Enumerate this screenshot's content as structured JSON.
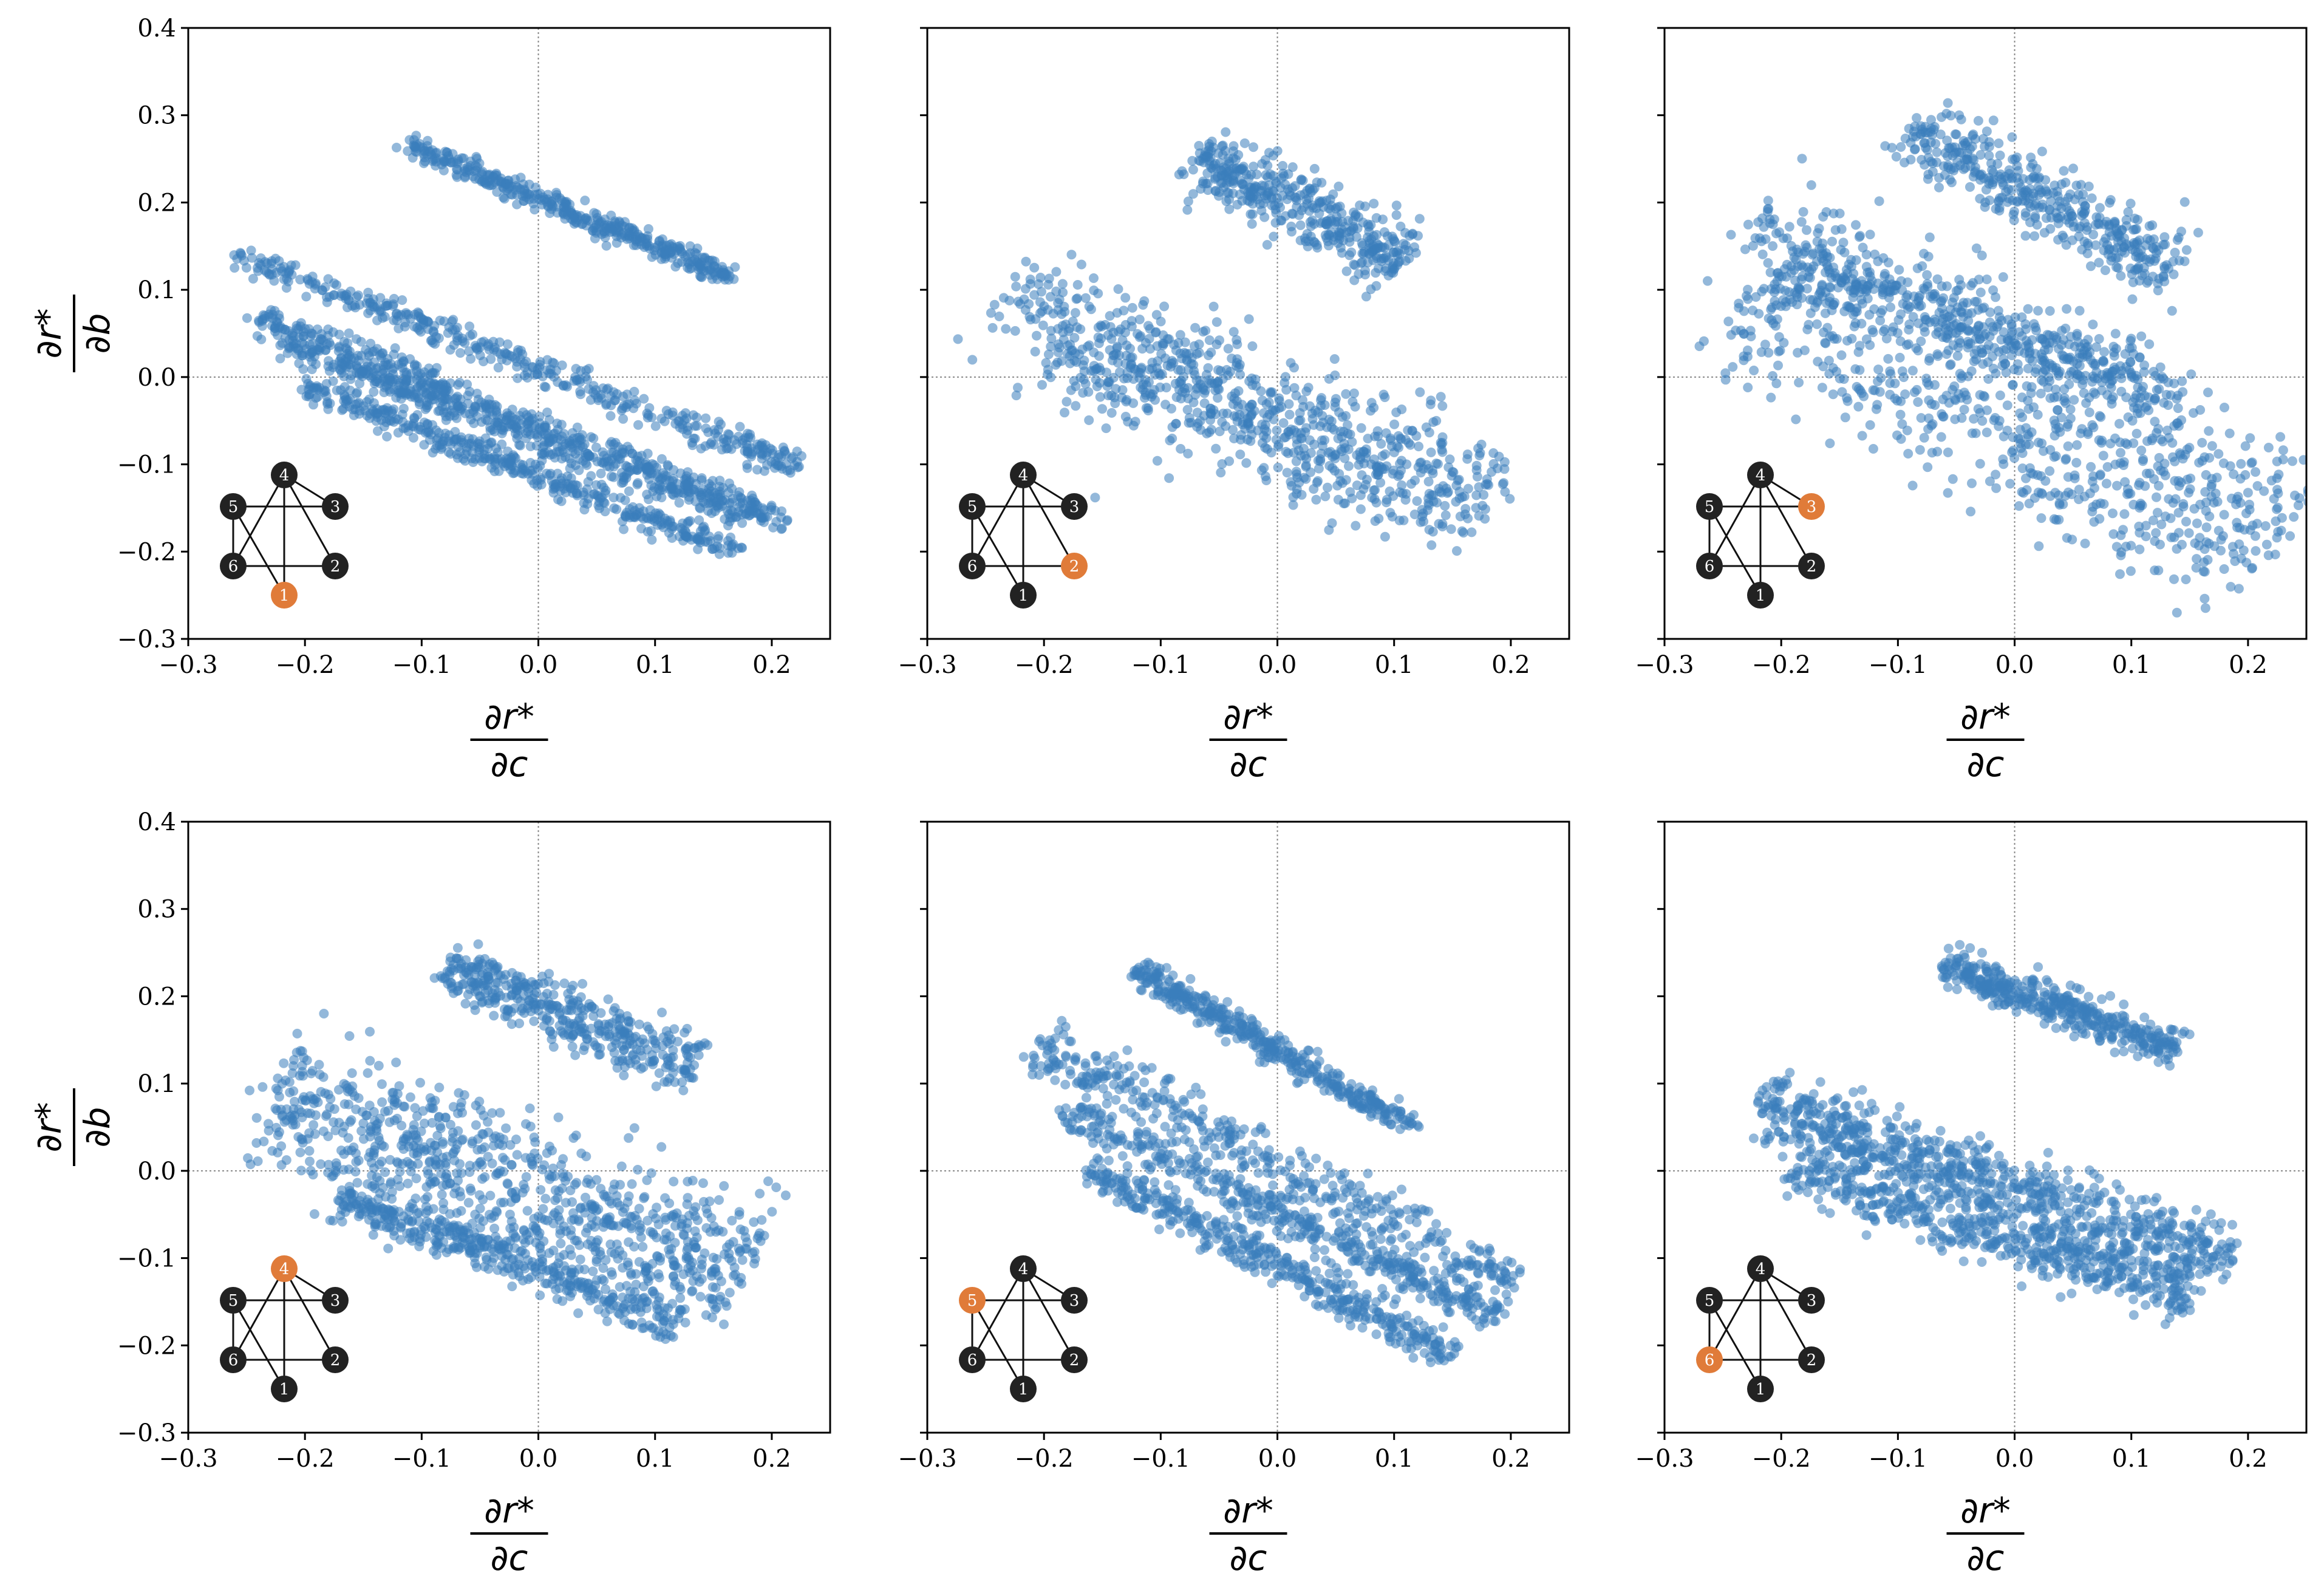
{
  "colors": {
    "points": "#3a7ebb",
    "node_default": "#222222",
    "node_highlight": "#e07b39",
    "node_text": "#ffffff",
    "zero_line": "#888888"
  },
  "shared_axes": {
    "xlabel_num": "∂r*",
    "xlabel_den": "∂c",
    "ylabel_num": "∂r*",
    "ylabel_den": "∂b",
    "xlim": [
      -0.3,
      0.25
    ],
    "ylim": [
      -0.3,
      0.4
    ],
    "xticks": [
      "−0.3",
      "−0.2",
      "−0.1",
      "0.0",
      "0.1",
      "0.2"
    ],
    "yticks": [
      "−0.3",
      "−0.2",
      "−0.1",
      "0.0",
      "0.1",
      "0.2",
      "0.3",
      "0.4"
    ]
  },
  "network": {
    "nodes": [
      "1",
      "2",
      "3",
      "4",
      "5",
      "6"
    ],
    "edges": [
      [
        "1",
        "4"
      ],
      [
        "1",
        "5"
      ],
      [
        "2",
        "4"
      ],
      [
        "2",
        "6"
      ],
      [
        "3",
        "4"
      ],
      [
        "5",
        "6"
      ],
      [
        "4",
        "6"
      ],
      [
        "3",
        "5"
      ]
    ]
  },
  "chart_data": [
    {
      "type": "scatter",
      "highlight_node": "1",
      "xlabel": "∂r*/∂c",
      "ylabel": "∂r*/∂b",
      "xlim": [
        -0.3,
        0.25
      ],
      "ylim": [
        -0.3,
        0.4
      ],
      "clusters": [
        {
          "from": [
            -0.11,
            0.265
          ],
          "to": [
            0.165,
            0.115
          ],
          "spread": 0.006
        },
        {
          "from": [
            -0.26,
            0.14
          ],
          "to": [
            0.225,
            -0.105
          ],
          "spread": 0.008
        },
        {
          "from": [
            -0.24,
            0.07
          ],
          "to": [
            0.21,
            -0.165
          ],
          "spread": 0.008
        },
        {
          "from": [
            -0.22,
            0.04
          ],
          "to": [
            0.18,
            -0.16
          ],
          "spread": 0.008
        },
        {
          "from": [
            -0.2,
            -0.01
          ],
          "to": [
            0.17,
            -0.2
          ],
          "spread": 0.007
        }
      ]
    },
    {
      "type": "scatter",
      "highlight_node": "2",
      "xlabel": "∂r*/∂c",
      "ylabel": "∂r*/∂b",
      "xlim": [
        -0.3,
        0.25
      ],
      "ylim": [
        -0.3,
        0.4
      ],
      "clusters": [
        {
          "from": [
            -0.07,
            0.255
          ],
          "to": [
            0.11,
            0.13
          ],
          "spread": 0.018
        },
        {
          "from": [
            -0.24,
            0.105
          ],
          "to": [
            0.19,
            -0.14
          ],
          "spread": 0.028
        },
        {
          "from": [
            -0.2,
            0.04
          ],
          "to": [
            0.16,
            -0.16
          ],
          "spread": 0.028
        }
      ]
    },
    {
      "type": "scatter",
      "highlight_node": "3",
      "xlabel": "∂r*/∂c",
      "ylabel": "∂r*/∂b",
      "xlim": [
        -0.3,
        0.25
      ],
      "ylim": [
        -0.3,
        0.4
      ],
      "clusters": [
        {
          "from": [
            -0.09,
            0.285
          ],
          "to": [
            0.14,
            0.12
          ],
          "spread": 0.018
        },
        {
          "from": [
            -0.23,
            0.18
          ],
          "to": [
            0.25,
            -0.16
          ],
          "spread": 0.035
        },
        {
          "from": [
            -0.24,
            0.08
          ],
          "to": [
            0.21,
            -0.22
          ],
          "spread": 0.035
        },
        {
          "from": [
            -0.2,
            0.13
          ],
          "to": [
            0.14,
            -0.02
          ],
          "spread": 0.02
        }
      ]
    },
    {
      "type": "scatter",
      "highlight_node": "4",
      "xlabel": "∂r*/∂c",
      "ylabel": "∂r*/∂b",
      "xlim": [
        -0.3,
        0.25
      ],
      "ylim": [
        -0.3,
        0.4
      ],
      "clusters": [
        {
          "from": [
            -0.08,
            0.235
          ],
          "to": [
            0.135,
            0.115
          ],
          "spread": 0.015
        },
        {
          "from": [
            -0.23,
            0.11
          ],
          "to": [
            0.19,
            -0.09
          ],
          "spread": 0.028
        },
        {
          "from": [
            -0.23,
            0.06
          ],
          "to": [
            0.17,
            -0.14
          ],
          "spread": 0.025
        },
        {
          "from": [
            -0.17,
            -0.03
          ],
          "to": [
            0.12,
            -0.175
          ],
          "spread": 0.012
        }
      ]
    },
    {
      "type": "scatter",
      "highlight_node": "5",
      "xlabel": "∂r*/∂c",
      "ylabel": "∂r*/∂b",
      "xlim": [
        -0.3,
        0.25
      ],
      "ylim": [
        -0.3,
        0.4
      ],
      "clusters": [
        {
          "from": [
            -0.12,
            0.23
          ],
          "to": [
            0.115,
            0.05
          ],
          "spread": 0.007
        },
        {
          "from": [
            -0.21,
            0.15
          ],
          "to": [
            0.2,
            -0.13
          ],
          "spread": 0.015
        },
        {
          "from": [
            -0.18,
            0.07
          ],
          "to": [
            0.19,
            -0.17
          ],
          "spread": 0.01
        },
        {
          "from": [
            -0.16,
            0.0
          ],
          "to": [
            0.15,
            -0.21
          ],
          "spread": 0.01
        }
      ]
    },
    {
      "type": "scatter",
      "highlight_node": "6",
      "xlabel": "∂r*/∂c",
      "ylabel": "∂r*/∂b",
      "xlim": [
        -0.3,
        0.25
      ],
      "ylim": [
        -0.3,
        0.4
      ],
      "clusters": [
        {
          "from": [
            -0.06,
            0.235
          ],
          "to": [
            0.14,
            0.14
          ],
          "spread": 0.01
        },
        {
          "from": [
            -0.22,
            0.09
          ],
          "to": [
            0.19,
            -0.1
          ],
          "spread": 0.015
        },
        {
          "from": [
            -0.21,
            0.06
          ],
          "to": [
            0.16,
            -0.12
          ],
          "spread": 0.018
        },
        {
          "from": [
            -0.19,
            0.0
          ],
          "to": [
            0.15,
            -0.15
          ],
          "spread": 0.015
        }
      ]
    }
  ]
}
